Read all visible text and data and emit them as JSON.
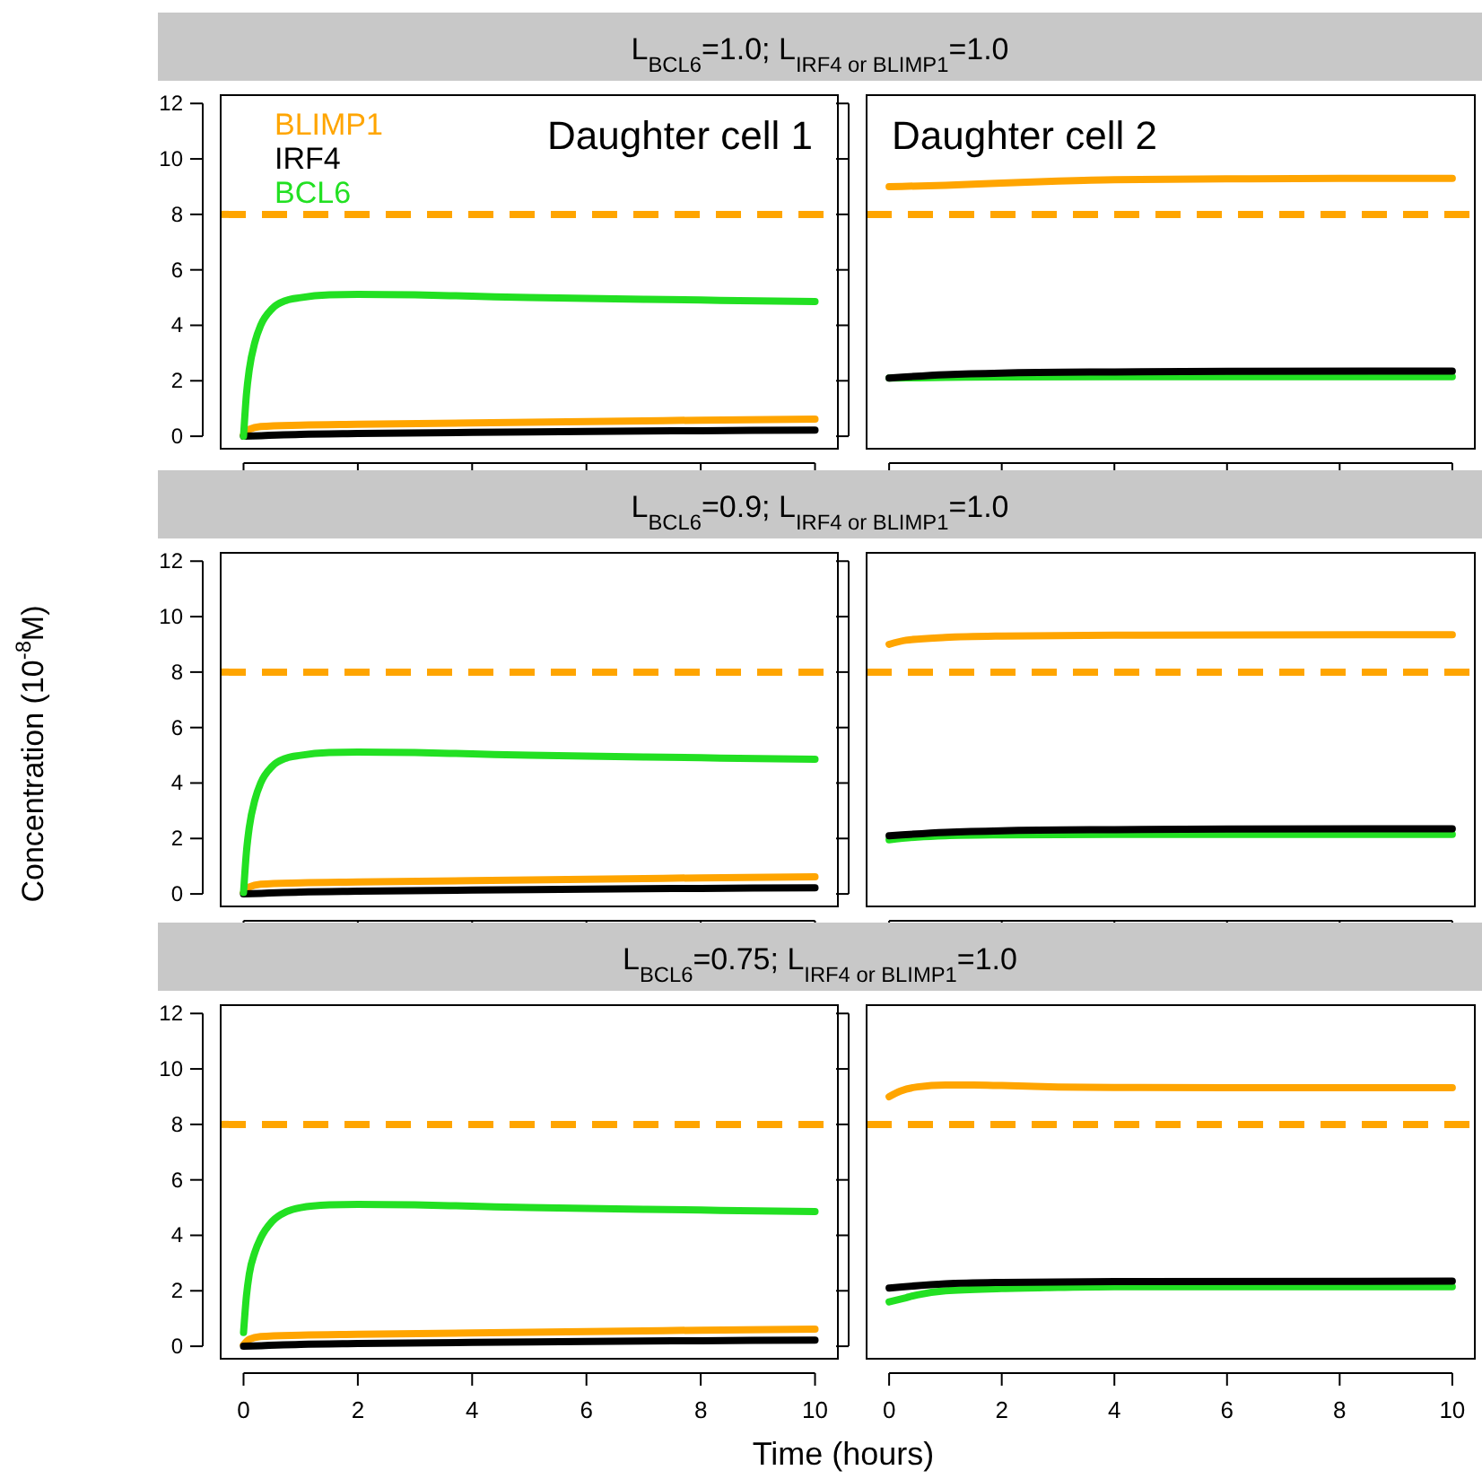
{
  "chart_data": [
    {
      "type": "line",
      "title": "L$_{BCL6}$=1.0; L$_{IRF4 or BLIMP1}$=1.0",
      "annotations": [
        "Daughter cell 1"
      ],
      "legend": "top left",
      "tick_labels": "y",
      "xlim": [
        -0.4,
        10.4
      ],
      "ylim": [
        -0.45,
        12.3
      ],
      "xticks": [
        0,
        2,
        4,
        6,
        8,
        10
      ],
      "yticks": [
        0,
        2,
        4,
        6,
        8,
        10,
        12
      ],
      "ref_lines": [
        {
          "axis": "y",
          "value": 8,
          "color": "#ffa500",
          "line_style": "dashed"
        }
      ],
      "series": [
        {
          "name": "BLIMP1",
          "color": "#ffa500",
          "x": [
            0,
            0.1,
            0.3,
            1,
            2,
            4,
            6,
            8,
            10
          ],
          "values": [
            0.05,
            0.25,
            0.35,
            0.4,
            0.43,
            0.48,
            0.53,
            0.58,
            0.62
          ]
        },
        {
          "name": "IRF4",
          "color": "#000000",
          "x": [
            0,
            1,
            2,
            4,
            6,
            8,
            10
          ],
          "values": [
            0,
            0.07,
            0.1,
            0.14,
            0.17,
            0.2,
            0.22
          ]
        },
        {
          "name": "BCL6",
          "color": "#22e022",
          "x": [
            0,
            0.05,
            0.1,
            0.2,
            0.3,
            0.5,
            0.75,
            1,
            1.5,
            2,
            3,
            4,
            5,
            6,
            7,
            8,
            9,
            10
          ],
          "values": [
            0,
            1.5,
            2.4,
            3.4,
            4.0,
            4.6,
            4.9,
            5.0,
            5.1,
            5.12,
            5.1,
            5.05,
            5.0,
            4.97,
            4.94,
            4.91,
            4.88,
            4.86
          ]
        }
      ]
    },
    {
      "type": "line",
      "annotations": [
        "Daughter cell 2"
      ],
      "tick_labels": false,
      "xlim": [
        -0.4,
        10.4
      ],
      "ylim": [
        -0.45,
        12.3
      ],
      "xticks": [
        0,
        2,
        4,
        6,
        8,
        10
      ],
      "yticks": [
        0,
        2,
        4,
        6,
        8,
        10,
        12
      ],
      "ref_lines": [
        {
          "axis": "y",
          "value": 8,
          "color": "#ffa500",
          "line_style": "dashed"
        }
      ],
      "series": [
        {
          "color": "#ffa500",
          "x": [
            0,
            1,
            2,
            3,
            4,
            6,
            8,
            10
          ],
          "values": [
            9.0,
            9.05,
            9.13,
            9.2,
            9.25,
            9.28,
            9.3,
            9.3
          ]
        },
        {
          "color": "#22e022",
          "x": [
            0,
            1,
            2,
            4,
            10
          ],
          "values": [
            2.1,
            2.12,
            2.14,
            2.15,
            2.15
          ]
        },
        {
          "color": "#000000",
          "x": [
            0,
            1,
            2,
            4,
            6,
            10
          ],
          "values": [
            2.1,
            2.22,
            2.28,
            2.32,
            2.34,
            2.35
          ]
        }
      ]
    },
    {
      "type": "line",
      "title": "L$_{BCL6}$=0.9; L$_{IRF4 or BLIMP1}$=1.0",
      "ylabel": "Concentration (10$^{-8}$M)",
      "tick_labels": "y",
      "xlim": [
        -0.4,
        10.4
      ],
      "ylim": [
        -0.45,
        12.3
      ],
      "xticks": [
        0,
        2,
        4,
        6,
        8,
        10
      ],
      "yticks": [
        0,
        2,
        4,
        6,
        8,
        10,
        12
      ],
      "ref_lines": [
        {
          "axis": "y",
          "value": 8,
          "color": "#ffa500",
          "line_style": "dashed"
        }
      ],
      "series": [
        {
          "color": "#ffa500",
          "x": [
            0,
            0.1,
            0.3,
            1,
            2,
            4,
            6,
            8,
            10
          ],
          "values": [
            0.05,
            0.25,
            0.35,
            0.4,
            0.43,
            0.48,
            0.53,
            0.58,
            0.62
          ]
        },
        {
          "color": "#000000",
          "x": [
            0,
            1,
            2,
            4,
            6,
            8,
            10
          ],
          "values": [
            0,
            0.07,
            0.1,
            0.14,
            0.17,
            0.2,
            0.22
          ]
        },
        {
          "color": "#22e022",
          "x": [
            0,
            0.05,
            0.1,
            0.2,
            0.3,
            0.5,
            0.75,
            1,
            1.5,
            2,
            3,
            4,
            5,
            6,
            7,
            8,
            9,
            10
          ],
          "values": [
            0.05,
            1.5,
            2.4,
            3.4,
            4.0,
            4.6,
            4.9,
            5.0,
            5.1,
            5.12,
            5.1,
            5.05,
            5.0,
            4.97,
            4.94,
            4.91,
            4.88,
            4.86
          ]
        }
      ]
    },
    {
      "type": "line",
      "tick_labels": false,
      "xlim": [
        -0.4,
        10.4
      ],
      "ylim": [
        -0.45,
        12.3
      ],
      "xticks": [
        0,
        2,
        4,
        6,
        8,
        10
      ],
      "yticks": [
        0,
        2,
        4,
        6,
        8,
        10,
        12
      ],
      "ref_lines": [
        {
          "axis": "y",
          "value": 8,
          "color": "#ffa500",
          "line_style": "dashed"
        }
      ],
      "series": [
        {
          "color": "#ffa500",
          "x": [
            0,
            0.3,
            1,
            2,
            4,
            10
          ],
          "values": [
            9.0,
            9.15,
            9.25,
            9.3,
            9.33,
            9.35
          ]
        },
        {
          "color": "#22e022",
          "x": [
            0,
            0.5,
            1,
            2,
            4,
            10
          ],
          "values": [
            1.95,
            2.05,
            2.1,
            2.13,
            2.15,
            2.15
          ]
        },
        {
          "color": "#000000",
          "x": [
            0,
            1,
            2,
            4,
            6,
            10
          ],
          "values": [
            2.1,
            2.22,
            2.28,
            2.32,
            2.34,
            2.35
          ]
        }
      ]
    },
    {
      "type": "line",
      "title": "L$_{BCL6}$=0.75; L$_{IRF4 or BLIMP1}$=1.0",
      "xlabel": "Time (hours)",
      "xlim": [
        -0.4,
        10.4
      ],
      "ylim": [
        -0.45,
        12.3
      ],
      "xticks": [
        0,
        2,
        4,
        6,
        8,
        10
      ],
      "yticks": [
        0,
        2,
        4,
        6,
        8,
        10,
        12
      ],
      "ref_lines": [
        {
          "axis": "y",
          "value": 8,
          "color": "#ffa500",
          "line_style": "dashed"
        }
      ],
      "series": [
        {
          "color": "#ffa500",
          "x": [
            0,
            0.1,
            0.3,
            1,
            2,
            4,
            6,
            8,
            10
          ],
          "values": [
            0.05,
            0.25,
            0.35,
            0.4,
            0.43,
            0.48,
            0.53,
            0.58,
            0.62
          ]
        },
        {
          "color": "#000000",
          "x": [
            0,
            1,
            2,
            4,
            6,
            8,
            10
          ],
          "values": [
            0,
            0.07,
            0.1,
            0.14,
            0.17,
            0.2,
            0.22
          ]
        },
        {
          "color": "#22e022",
          "x": [
            0,
            0.05,
            0.1,
            0.2,
            0.3,
            0.5,
            0.75,
            1,
            1.5,
            2,
            3,
            4,
            5,
            6,
            7,
            8,
            9,
            10
          ],
          "values": [
            0.5,
            1.8,
            2.6,
            3.4,
            3.9,
            4.5,
            4.85,
            5.0,
            5.1,
            5.12,
            5.1,
            5.05,
            5.0,
            4.97,
            4.94,
            4.91,
            4.88,
            4.86
          ]
        }
      ]
    },
    {
      "type": "line",
      "tick_labels": "x",
      "xlim": [
        -0.4,
        10.4
      ],
      "ylim": [
        -0.45,
        12.3
      ],
      "xticks": [
        0,
        2,
        4,
        6,
        8,
        10
      ],
      "yticks": [
        0,
        2,
        4,
        6,
        8,
        10,
        12
      ],
      "ref_lines": [
        {
          "axis": "y",
          "value": 8,
          "color": "#ffa500",
          "line_style": "dashed"
        }
      ],
      "series": [
        {
          "color": "#ffa500",
          "x": [
            0,
            0.2,
            0.5,
            1,
            1.5,
            2,
            3,
            4,
            6,
            10
          ],
          "values": [
            9.0,
            9.2,
            9.35,
            9.42,
            9.42,
            9.4,
            9.35,
            9.33,
            9.32,
            9.32
          ]
        },
        {
          "color": "#22e022",
          "x": [
            0,
            0.3,
            0.5,
            1,
            2,
            3,
            4,
            10
          ],
          "values": [
            1.6,
            1.75,
            1.85,
            2.0,
            2.08,
            2.12,
            2.15,
            2.15
          ]
        },
        {
          "color": "#000000",
          "x": [
            0,
            1,
            2,
            4,
            10
          ],
          "values": [
            2.1,
            2.25,
            2.3,
            2.33,
            2.35
          ]
        }
      ]
    }
  ]
}
